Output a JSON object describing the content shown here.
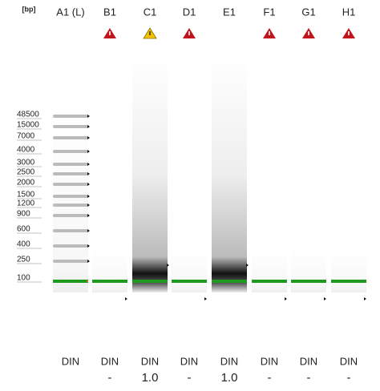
{
  "unit": "[bp]",
  "ladder": [
    48500,
    15000,
    7000,
    4000,
    3000,
    2500,
    2000,
    1500,
    1200,
    900,
    600,
    400,
    250,
    100
  ],
  "lanes": [
    {
      "name": "A1 (L)",
      "status": null,
      "din_label": "DIN",
      "din": null
    },
    {
      "name": "B1",
      "status": "error",
      "din_label": "DIN",
      "din": "-"
    },
    {
      "name": "C1",
      "status": "warning",
      "din_label": "DIN",
      "din": "1.0"
    },
    {
      "name": "D1",
      "status": "error",
      "din_label": "DIN",
      "din": "-"
    },
    {
      "name": "E1",
      "status": "warning-free",
      "din_label": "DIN",
      "din": "1.0"
    },
    {
      "name": "F1",
      "status": "error",
      "din_label": "DIN",
      "din": "-"
    },
    {
      "name": "G1",
      "status": "error",
      "din_label": "DIN",
      "din": "-"
    },
    {
      "name": "H1",
      "status": "error",
      "din_label": "DIN",
      "din": "-"
    }
  ]
}
